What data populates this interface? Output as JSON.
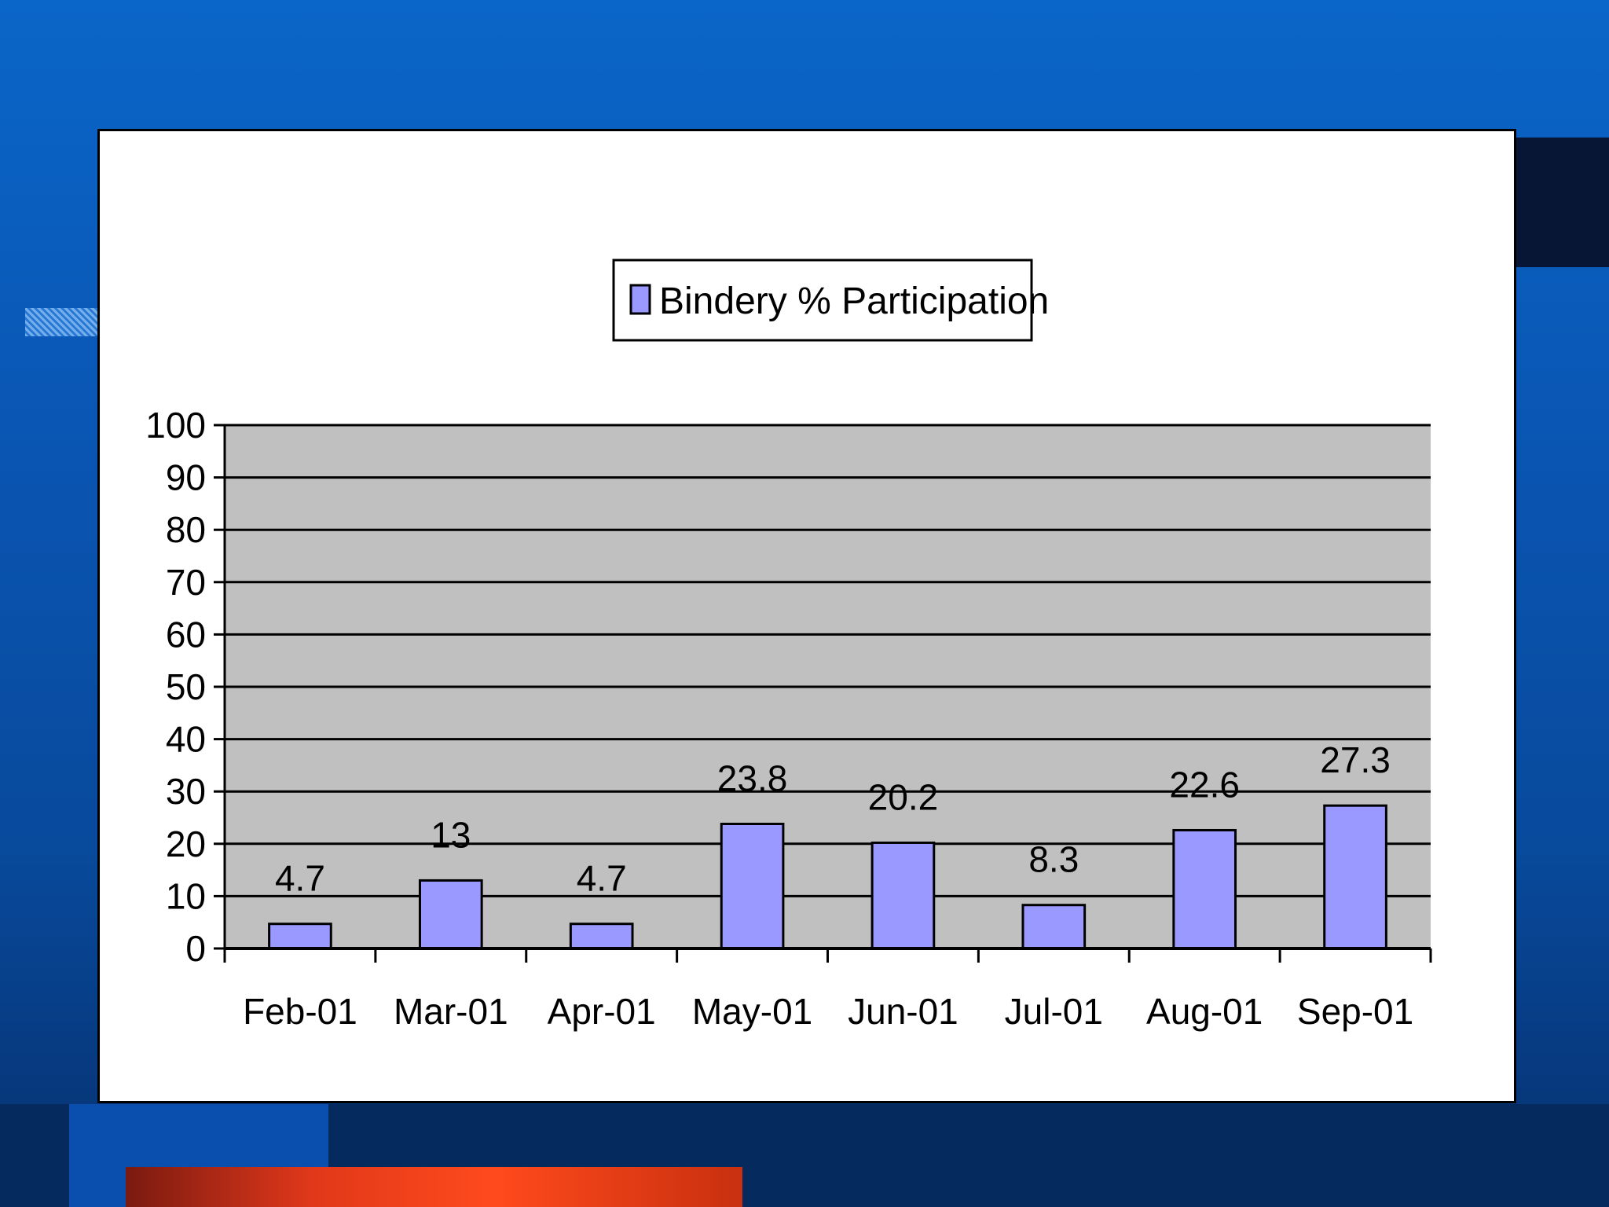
{
  "chart_data": {
    "type": "bar",
    "categories": [
      "Feb-01",
      "Mar-01",
      "Apr-01",
      "May-01",
      "Jun-01",
      "Jul-01",
      "Aug-01",
      "Sep-01"
    ],
    "series": [
      {
        "name": "Bindery % Participation",
        "values": [
          4.7,
          13,
          4.7,
          23.8,
          20.2,
          8.3,
          22.6,
          27.3
        ]
      }
    ],
    "data_labels": [
      "4.7",
      "13",
      "4.7",
      "23.8",
      "20.2",
      "8.3",
      "22.6",
      "27.3"
    ],
    "yticks": [
      "0",
      "10",
      "20",
      "30",
      "40",
      "50",
      "60",
      "70",
      "80",
      "90",
      "100"
    ],
    "ylim": [
      0,
      100
    ],
    "grid": true,
    "legend_position": "top-center",
    "colors": {
      "bar": "#9999ff",
      "plot_bg": "#c0c0c0"
    }
  }
}
